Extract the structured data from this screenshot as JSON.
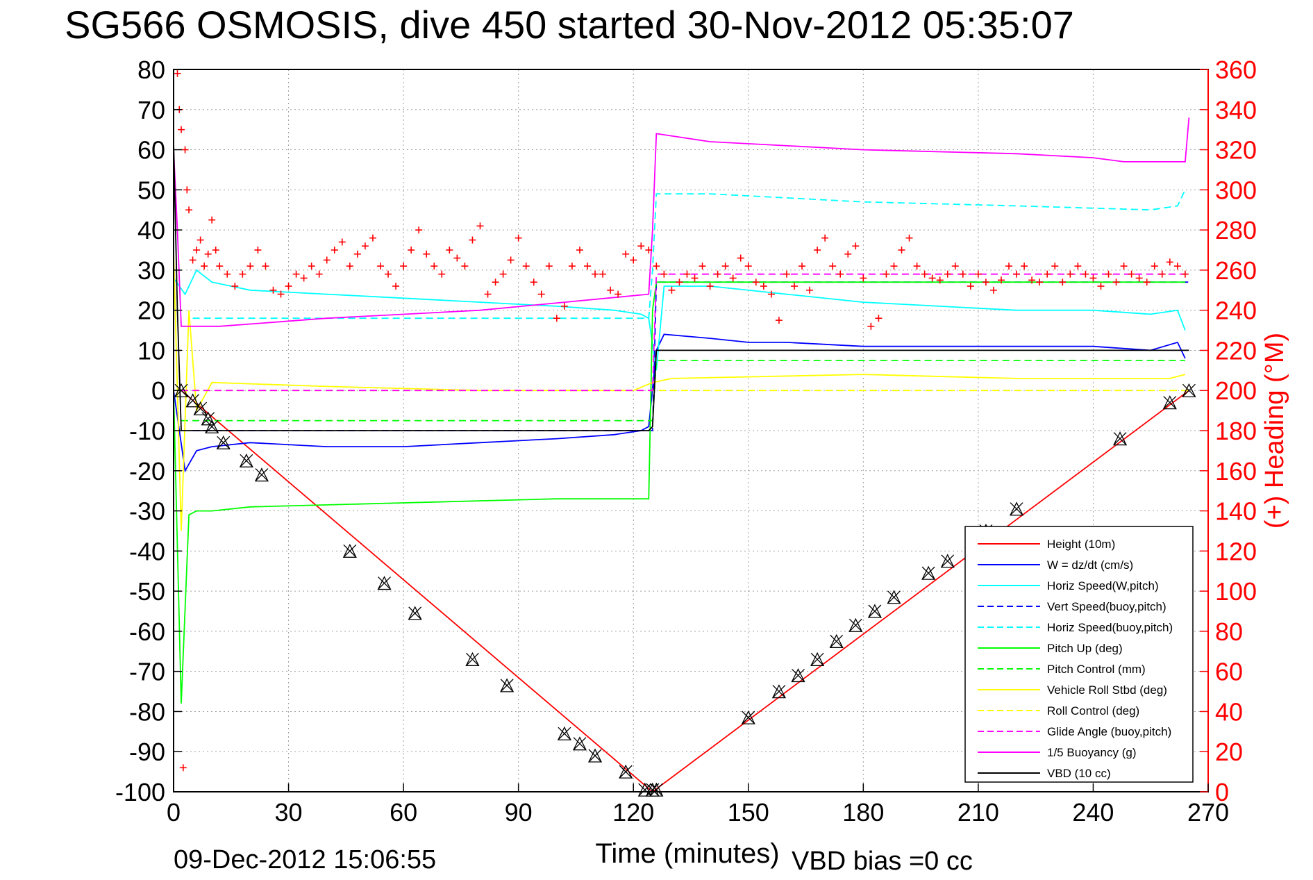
{
  "chart_data": {
    "type": "line",
    "title": "SG566 OSMOSIS, dive 450 started 30-Nov-2012 05:35:07",
    "xlabel": "Time (minutes)",
    "ylabel_right": "(+) Heading (°M)",
    "footer_left": "09-Dec-2012 15:06:55",
    "footer_right": "VBD bias =0 cc",
    "xlim": [
      0,
      270
    ],
    "ylim_left": [
      -100,
      80
    ],
    "ylim_right": [
      0,
      360
    ],
    "xticks": [
      0,
      30,
      60,
      90,
      120,
      150,
      180,
      210,
      240,
      270
    ],
    "yticks_left": [
      80,
      70,
      60,
      50,
      40,
      30,
      20,
      10,
      0,
      -10,
      -20,
      -30,
      -40,
      -50,
      -60,
      -70,
      -80,
      -90,
      -100
    ],
    "yticks_right": [
      360,
      340,
      320,
      300,
      280,
      260,
      240,
      220,
      200,
      180,
      160,
      140,
      120,
      100,
      80,
      60,
      40,
      20,
      0
    ],
    "grid": true,
    "legend_position": "bottom-right",
    "series": [
      {
        "name": "Height (10m)",
        "color": "#ff0000",
        "style": "solid",
        "x": [
          2,
          125,
          265
        ],
        "y": [
          0,
          -100,
          0
        ]
      },
      {
        "name": "W = dz/dt (cm/s)",
        "color": "#0000ff",
        "style": "solid",
        "x": [
          0,
          3,
          6,
          10,
          20,
          40,
          60,
          80,
          100,
          115,
          122,
          124,
          126,
          128,
          140,
          150,
          160,
          180,
          200,
          220,
          240,
          255,
          262,
          264
        ],
        "y": [
          0,
          -20,
          -15,
          -14,
          -13,
          -14,
          -14,
          -13,
          -12,
          -11,
          -10,
          -9,
          10,
          14,
          13,
          12,
          12,
          11,
          11,
          11,
          11,
          10,
          12,
          8
        ]
      },
      {
        "name": "Horiz Speed(W,pitch)",
        "color": "#00ffff",
        "style": "solid",
        "x": [
          0,
          3,
          6,
          10,
          20,
          40,
          60,
          80,
          100,
          115,
          122,
          124,
          126,
          128,
          140,
          160,
          180,
          200,
          220,
          240,
          255,
          262,
          264
        ],
        "y": [
          28,
          24,
          30,
          27,
          25,
          24,
          23,
          22,
          21,
          20,
          19,
          18,
          5,
          26,
          26,
          24,
          22,
          21,
          20,
          20,
          19,
          20,
          15
        ]
      },
      {
        "name": "Vert Speed(buoy,pitch)",
        "color": "#0000ff",
        "style": "dashed",
        "x": [
          5,
          125,
          126,
          265
        ],
        "y": [
          -10,
          -10,
          27,
          27
        ]
      },
      {
        "name": "Horiz Speed(buoy,pitch)",
        "color": "#00ffff",
        "style": "dashed",
        "x": [
          5,
          124,
          125,
          126,
          140,
          180,
          220,
          255,
          262,
          264
        ],
        "y": [
          18,
          18,
          30,
          49,
          49,
          47,
          46,
          45,
          46,
          50
        ]
      },
      {
        "name": "Pitch Up (deg)",
        "color": "#00ff00",
        "style": "solid",
        "x": [
          0,
          2,
          4,
          6,
          10,
          20,
          60,
          100,
          124,
          125,
          126,
          140,
          180,
          220,
          255,
          264
        ],
        "y": [
          0,
          -78,
          -31,
          -30,
          -30,
          -29,
          -28,
          -27,
          -27,
          20,
          27,
          27,
          27,
          27,
          27,
          27
        ]
      },
      {
        "name": "Pitch Control (mm)",
        "color": "#00ff00",
        "style": "dashed",
        "x": [
          2,
          125,
          126,
          264
        ],
        "y": [
          -7.5,
          -7.5,
          7.5,
          7.5
        ]
      },
      {
        "name": "Vehicle Roll Stbd (deg)",
        "color": "#ffff00",
        "style": "solid",
        "x": [
          0,
          2,
          4,
          6,
          10,
          40,
          80,
          120,
          125,
          130,
          180,
          220,
          260,
          264
        ],
        "y": [
          35,
          -35,
          20,
          -5,
          2,
          1,
          0,
          0,
          2,
          3,
          4,
          3,
          3,
          4
        ]
      },
      {
        "name": "Roll Control (deg)",
        "color": "#ffff00",
        "style": "dashed",
        "x": [
          2,
          125,
          126,
          265
        ],
        "y": [
          0,
          0,
          0,
          0
        ]
      },
      {
        "name": "Glide Angle (buoy,pitch)",
        "color": "#ff00ff",
        "style": "dashed",
        "x": [
          2,
          125,
          126,
          265
        ],
        "y": [
          0,
          0,
          29,
          29
        ]
      },
      {
        "name": "1/5 Buoyancy (g)",
        "color": "#ff00ff",
        "style": "solid",
        "x": [
          0,
          1,
          2,
          12,
          40,
          80,
          124,
          125,
          126,
          140,
          180,
          220,
          240,
          248,
          258,
          264,
          265
        ],
        "y": [
          60,
          40,
          16,
          16,
          18,
          20,
          24,
          40,
          64,
          62,
          60,
          59,
          58,
          57,
          57,
          57,
          68
        ]
      },
      {
        "name": "VBD (10 cc)",
        "color": "#000000",
        "style": "solid",
        "x": [
          0,
          1,
          2,
          4,
          124,
          125,
          126,
          265
        ],
        "y": [
          62,
          20,
          -10,
          -10,
          -10,
          -9,
          10,
          10
        ]
      }
    ],
    "heading_points": {
      "name": "(+) Heading (°M)",
      "color": "#ff0000",
      "axis": "right",
      "x": [
        1,
        1.5,
        2,
        2.5,
        3,
        3.5,
        4,
        5,
        6,
        7,
        8,
        9,
        10,
        11,
        12,
        14,
        16,
        18,
        20,
        22,
        24,
        26,
        28,
        30,
        32,
        34,
        36,
        38,
        40,
        42,
        44,
        46,
        48,
        50,
        52,
        54,
        56,
        58,
        60,
        62,
        64,
        66,
        68,
        70,
        72,
        74,
        76,
        78,
        80,
        82,
        84,
        86,
        88,
        90,
        92,
        94,
        96,
        98,
        100,
        102,
        104,
        106,
        108,
        110,
        112,
        114,
        116,
        118,
        120,
        122,
        124,
        126,
        128,
        130,
        132,
        134,
        136,
        138,
        140,
        142,
        144,
        146,
        148,
        150,
        152,
        154,
        156,
        158,
        160,
        162,
        164,
        166,
        168,
        170,
        172,
        174,
        176,
        178,
        180,
        182,
        184,
        186,
        188,
        190,
        192,
        194,
        196,
        198,
        200,
        202,
        204,
        206,
        208,
        210,
        212,
        214,
        216,
        218,
        220,
        222,
        224,
        226,
        228,
        230,
        232,
        234,
        236,
        238,
        240,
        242,
        244,
        246,
        248,
        250,
        252,
        254,
        256,
        258,
        260,
        262,
        264
      ],
      "y": [
        358,
        340,
        330,
        12,
        320,
        300,
        290,
        265,
        270,
        275,
        262,
        268,
        285,
        270,
        262,
        258,
        252,
        258,
        262,
        270,
        262,
        250,
        248,
        252,
        258,
        256,
        262,
        258,
        265,
        270,
        274,
        262,
        268,
        272,
        276,
        262,
        258,
        252,
        262,
        270,
        280,
        268,
        262,
        258,
        270,
        266,
        262,
        275,
        282,
        248,
        254,
        258,
        265,
        276,
        262,
        254,
        248,
        262,
        236,
        242,
        262,
        270,
        262,
        258,
        258,
        250,
        248,
        268,
        265,
        272,
        270,
        262,
        258,
        250,
        254,
        258,
        256,
        262,
        252,
        258,
        262,
        256,
        266,
        262,
        254,
        252,
        248,
        235,
        258,
        252,
        262,
        250,
        270,
        276,
        262,
        258,
        268,
        272,
        256,
        232,
        236,
        258,
        262,
        270,
        276,
        262,
        258,
        256,
        255,
        258,
        262,
        258,
        252,
        258,
        254,
        250,
        255,
        262,
        258,
        262,
        255,
        254,
        258,
        262,
        254,
        258,
        262,
        258,
        256,
        252,
        258,
        254,
        262,
        258,
        256,
        254,
        262,
        258,
        264,
        262,
        258
      ]
    },
    "height_markers": {
      "x": [
        2,
        5,
        7,
        9,
        10,
        13,
        19,
        23,
        46,
        55,
        63,
        78,
        87,
        102,
        106,
        110,
        118,
        123,
        125,
        126,
        150,
        158,
        163,
        168,
        173,
        178,
        183,
        188,
        197,
        202,
        212,
        220,
        247,
        260,
        265
      ],
      "y": [
        0,
        -2.5,
        -4.5,
        -7,
        -9,
        -13,
        -17.5,
        -21,
        -40,
        -48,
        -55.5,
        -67,
        -73.5,
        -85.5,
        -88,
        -91,
        -95,
        -99.5,
        -99.5,
        -99.5,
        -81.5,
        -75,
        -71,
        -67,
        -62.5,
        -58.5,
        -55,
        -51.5,
        -45.5,
        -42.5,
        -35,
        -29.5,
        -12,
        -3,
        0
      ]
    }
  }
}
